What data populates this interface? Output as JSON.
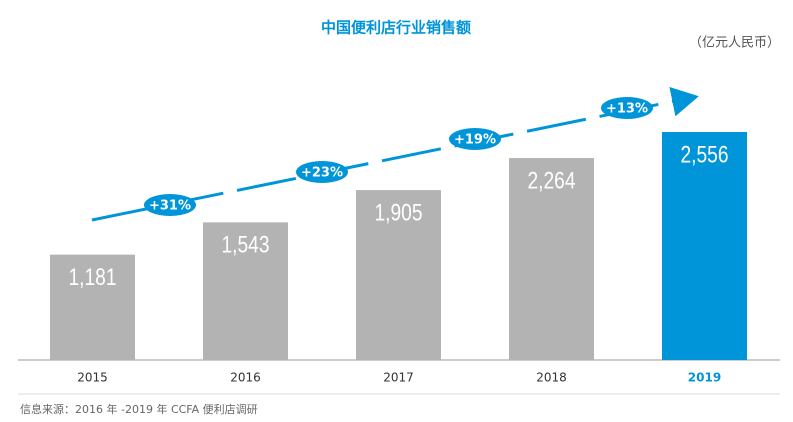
{
  "chart_data": {
    "type": "bar",
    "title": "中国便利店行业销售额",
    "unit_label": "（亿元人民币）",
    "categories": [
      "2015",
      "2016",
      "2017",
      "2018",
      "2019"
    ],
    "values": [
      1181,
      1543,
      1905,
      2264,
      2556
    ],
    "value_labels": [
      "1,181",
      "1,543",
      "1,905",
      "2,264",
      "2,556"
    ],
    "colors": [
      "#b3b3b4",
      "#b3b3b4",
      "#b3b3b4",
      "#b3b3b4",
      "#0095d9"
    ],
    "growth": {
      "values": [
        31,
        23,
        19,
        13
      ],
      "value_labels": [
        "+31%",
        "+23%",
        "+19%",
        "+13%"
      ],
      "color": "#0095d9"
    },
    "source": "信息来源：2016 年 -2019 年 CCFA 便利店调研"
  }
}
